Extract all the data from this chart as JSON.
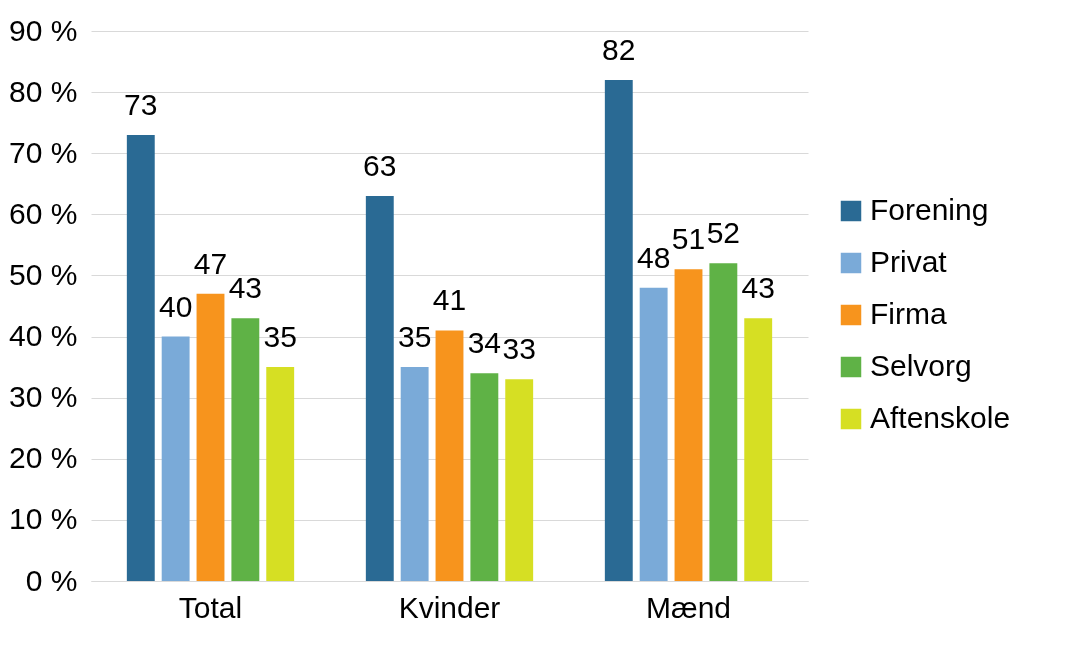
{
  "chart_data": {
    "type": "bar",
    "categories": [
      "Total",
      "Kvinder",
      "Mænd"
    ],
    "series": [
      {
        "name": "Forening",
        "color": "#2a6a94",
        "values": [
          73,
          63,
          82
        ]
      },
      {
        "name": "Privat",
        "color": "#7aaad8",
        "values": [
          40,
          35,
          48
        ]
      },
      {
        "name": "Firma",
        "color": "#f7941d",
        "values": [
          47,
          41,
          51
        ]
      },
      {
        "name": "Selvorg",
        "color": "#5fb246",
        "values": [
          43,
          34,
          52
        ]
      },
      {
        "name": "Aftenskole",
        "color": "#d6df23",
        "values": [
          35,
          33,
          43
        ]
      }
    ],
    "ylim": [
      0,
      90
    ],
    "yticks": [
      {
        "value": 0,
        "label": "0 %"
      },
      {
        "value": 10,
        "label": "10 %"
      },
      {
        "value": 20,
        "label": "20 %"
      },
      {
        "value": 30,
        "label": "30 %"
      },
      {
        "value": 40,
        "label": "40 %"
      },
      {
        "value": 50,
        "label": "50 %"
      },
      {
        "value": 60,
        "label": "60 %"
      },
      {
        "value": 70,
        "label": "70 %"
      },
      {
        "value": 80,
        "label": "80 %"
      },
      {
        "value": 90,
        "label": "90 %"
      }
    ],
    "grid": "y",
    "legend": "right",
    "data_labels": true
  }
}
